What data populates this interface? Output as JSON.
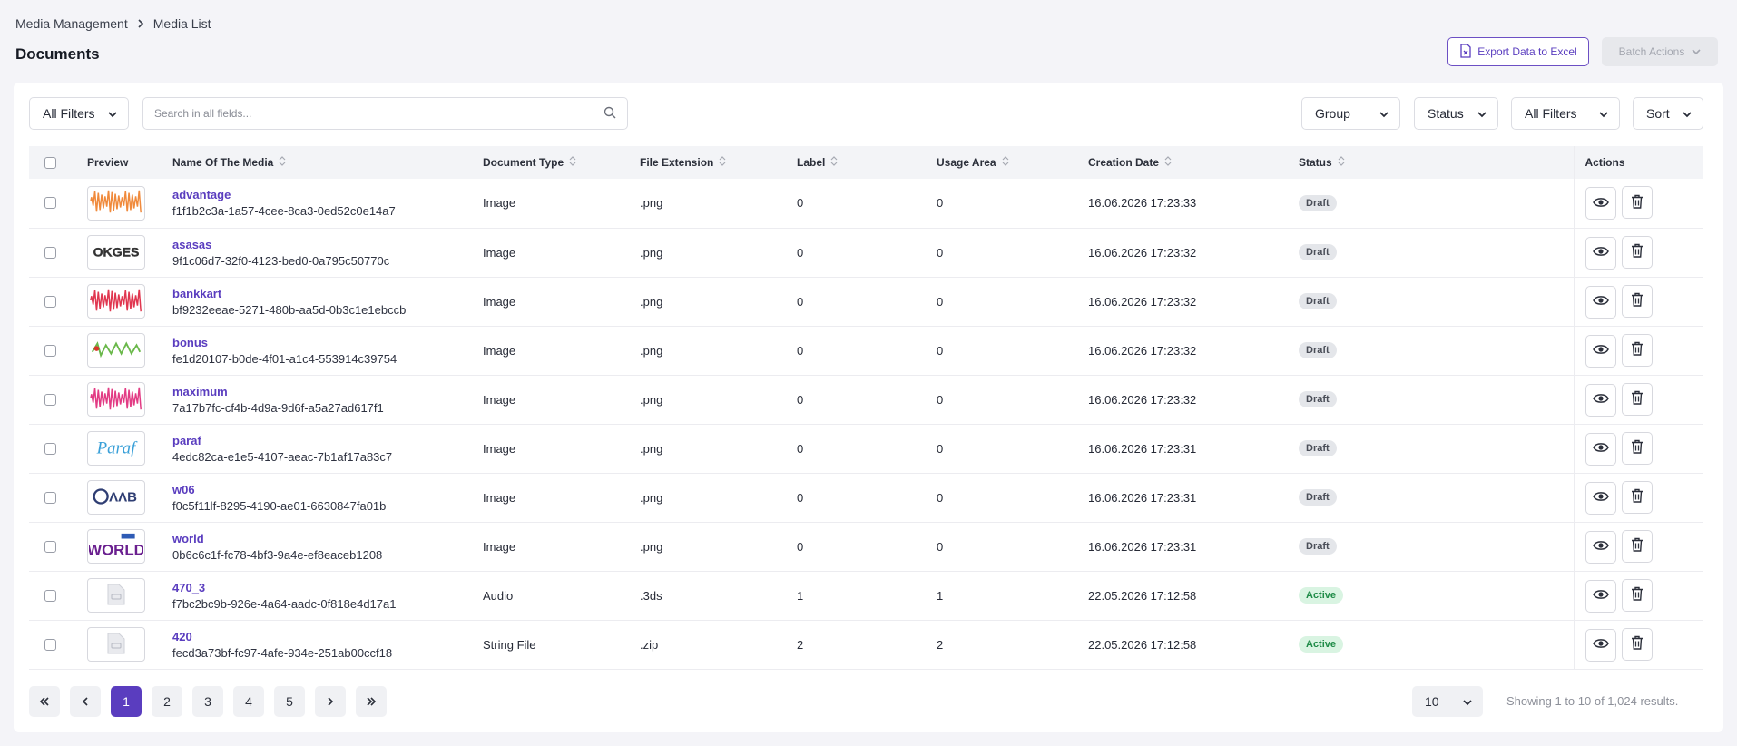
{
  "breadcrumb": {
    "root": "Media Management",
    "current": "Media List"
  },
  "page": {
    "title": "Documents"
  },
  "toolbar": {
    "export_label": "Export Data to Excel",
    "batch_label": "Batch Actions"
  },
  "filters": {
    "all_filters_left": "All Filters",
    "search_placeholder": "Search in all fields...",
    "group": "Group",
    "status": "Status",
    "all_filters_right": "All Filters",
    "sort": "Sort"
  },
  "table": {
    "columns": [
      "Preview",
      "Name Of The Media",
      "Document Type",
      "File Extension",
      "Label",
      "Usage Area",
      "Creation Date",
      "Status",
      "Actions"
    ],
    "rows": [
      {
        "name": "advantage",
        "id": "f1f1b2c3a-1a57-4cee-8ca3-0ed52c0e14a7",
        "type": "Image",
        "ext": ".png",
        "label": "0",
        "usage": "0",
        "date": "16.06.2026 17:23:33",
        "status": "Draft",
        "thumb": "wave-orange"
      },
      {
        "name": "asasas",
        "id": "9f1c06d7-32f0-4123-bed0-0a795c50770c",
        "type": "Image",
        "ext": ".png",
        "label": "0",
        "usage": "0",
        "date": "16.06.2026 17:23:32",
        "status": "Draft",
        "thumb": "text-black"
      },
      {
        "name": "bankkart",
        "id": "bf9232eeae-5271-480b-aa5d-0b3c1e1ebccb",
        "type": "Image",
        "ext": ".png",
        "label": "0",
        "usage": "0",
        "date": "16.06.2026 17:23:32",
        "status": "Draft",
        "thumb": "wave-red"
      },
      {
        "name": "bonus",
        "id": "fe1d20107-b0de-4f01-a1c4-553914c39754",
        "type": "Image",
        "ext": ".png",
        "label": "0",
        "usage": "0",
        "date": "16.06.2026 17:23:32",
        "status": "Draft",
        "thumb": "wave-green"
      },
      {
        "name": "maximum",
        "id": "7a17b7fc-cf4b-4d9a-9d6f-a5a27ad617f1",
        "type": "Image",
        "ext": ".png",
        "label": "0",
        "usage": "0",
        "date": "16.06.2026 17:23:32",
        "status": "Draft",
        "thumb": "wave-pink"
      },
      {
        "name": "paraf",
        "id": "4edc82ca-e1e5-4107-aeac-7b1af17a83c7",
        "type": "Image",
        "ext": ".png",
        "label": "0",
        "usage": "0",
        "date": "16.06.2026 17:23:31",
        "status": "Draft",
        "thumb": "paraf-logo"
      },
      {
        "name": "w06",
        "id": "f0c5f11lf-8295-4190-ae01-6630847fa01b",
        "type": "Image",
        "ext": ".png",
        "label": "0",
        "usage": "0",
        "date": "16.06.2026 17:23:31",
        "status": "Draft",
        "thumb": "w06-logo"
      },
      {
        "name": "world",
        "id": "0b6c6c1f-fc78-4bf3-9a4e-ef8eaceb1208",
        "type": "Image",
        "ext": ".png",
        "label": "0",
        "usage": "0",
        "date": "16.06.2026 17:23:31",
        "status": "Draft",
        "thumb": "world-logo"
      },
      {
        "name": "470_3",
        "id": "f7bc2bc9b-926e-4a64-aadc-0f818e4d17a1",
        "type": "Audio",
        "ext": ".3ds",
        "label": "1",
        "usage": "1",
        "date": "22.05.2026 17:12:58",
        "status": "Active",
        "thumb": "file-icon"
      },
      {
        "name": "420",
        "id": "fecd3a73bf-fc97-4afe-934e-251ab00ccf18",
        "type": "String File",
        "ext": ".zip",
        "label": "2",
        "usage": "2",
        "date": "22.05.2026 17:12:58",
        "status": "Active",
        "thumb": "file-icon"
      }
    ]
  },
  "pagination": {
    "pages": [
      "1",
      "2",
      "3",
      "4",
      "5"
    ],
    "current": "1",
    "page_size": "10",
    "summary": "Showing 1 to 10 of 1,024 results."
  },
  "colors": {
    "accent": "#5a3dbf",
    "draft_badge": "#e4e6ea",
    "active_badge": "#d9f4e2",
    "active_text": "#1e8b47"
  }
}
